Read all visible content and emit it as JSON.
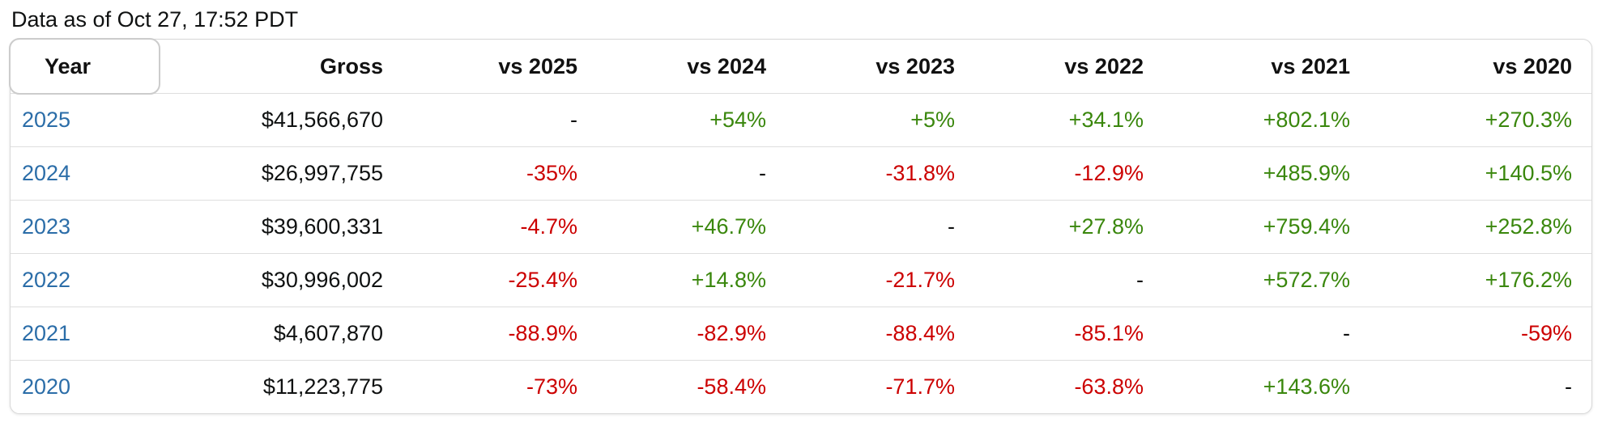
{
  "meta": {
    "data_as_of": "Data as of Oct 27, 17:52 PDT"
  },
  "colors": {
    "pos": "#3a870d",
    "neg": "#cc0000",
    "link": "#2b6da8"
  },
  "table": {
    "columns": [
      "Year",
      "Gross",
      "vs 2025",
      "vs 2024",
      "vs 2023",
      "vs 2022",
      "vs 2021",
      "vs 2020"
    ],
    "rows": [
      {
        "year": "2025",
        "gross": "$41,566,670",
        "vs": [
          "-",
          "+54%",
          "+5%",
          "+34.1%",
          "+802.1%",
          "+270.3%"
        ]
      },
      {
        "year": "2024",
        "gross": "$26,997,755",
        "vs": [
          "-35%",
          "-",
          "-31.8%",
          "-12.9%",
          "+485.9%",
          "+140.5%"
        ]
      },
      {
        "year": "2023",
        "gross": "$39,600,331",
        "vs": [
          "-4.7%",
          "+46.7%",
          "-",
          "+27.8%",
          "+759.4%",
          "+252.8%"
        ]
      },
      {
        "year": "2022",
        "gross": "$30,996,002",
        "vs": [
          "-25.4%",
          "+14.8%",
          "-21.7%",
          "-",
          "+572.7%",
          "+176.2%"
        ]
      },
      {
        "year": "2021",
        "gross": "$4,607,870",
        "vs": [
          "-88.9%",
          "-82.9%",
          "-88.4%",
          "-85.1%",
          "-",
          "-59%"
        ]
      },
      {
        "year": "2020",
        "gross": "$11,223,775",
        "vs": [
          "-73%",
          "-58.4%",
          "-71.7%",
          "-63.8%",
          "+143.6%",
          "-"
        ]
      }
    ]
  }
}
